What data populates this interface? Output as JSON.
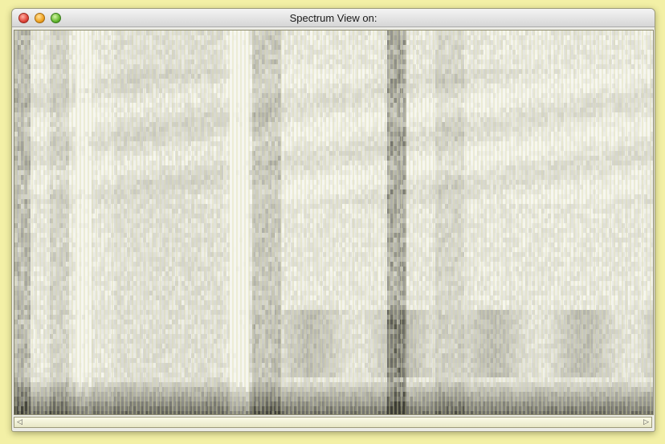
{
  "window": {
    "title": "Spectrum View on:"
  },
  "icons": {
    "close": "close-icon",
    "minimize": "minimize-icon",
    "zoom": "zoom-icon",
    "scroll_left": "scroll-left-arrow-icon",
    "scroll_right": "scroll-right-arrow-icon"
  },
  "colors": {
    "desktop": "#f3f0a6",
    "grid_line": "#dcdca4",
    "spectrum_light": "#f4f4f0",
    "spectrum_dark": "#2a2a2a"
  }
}
